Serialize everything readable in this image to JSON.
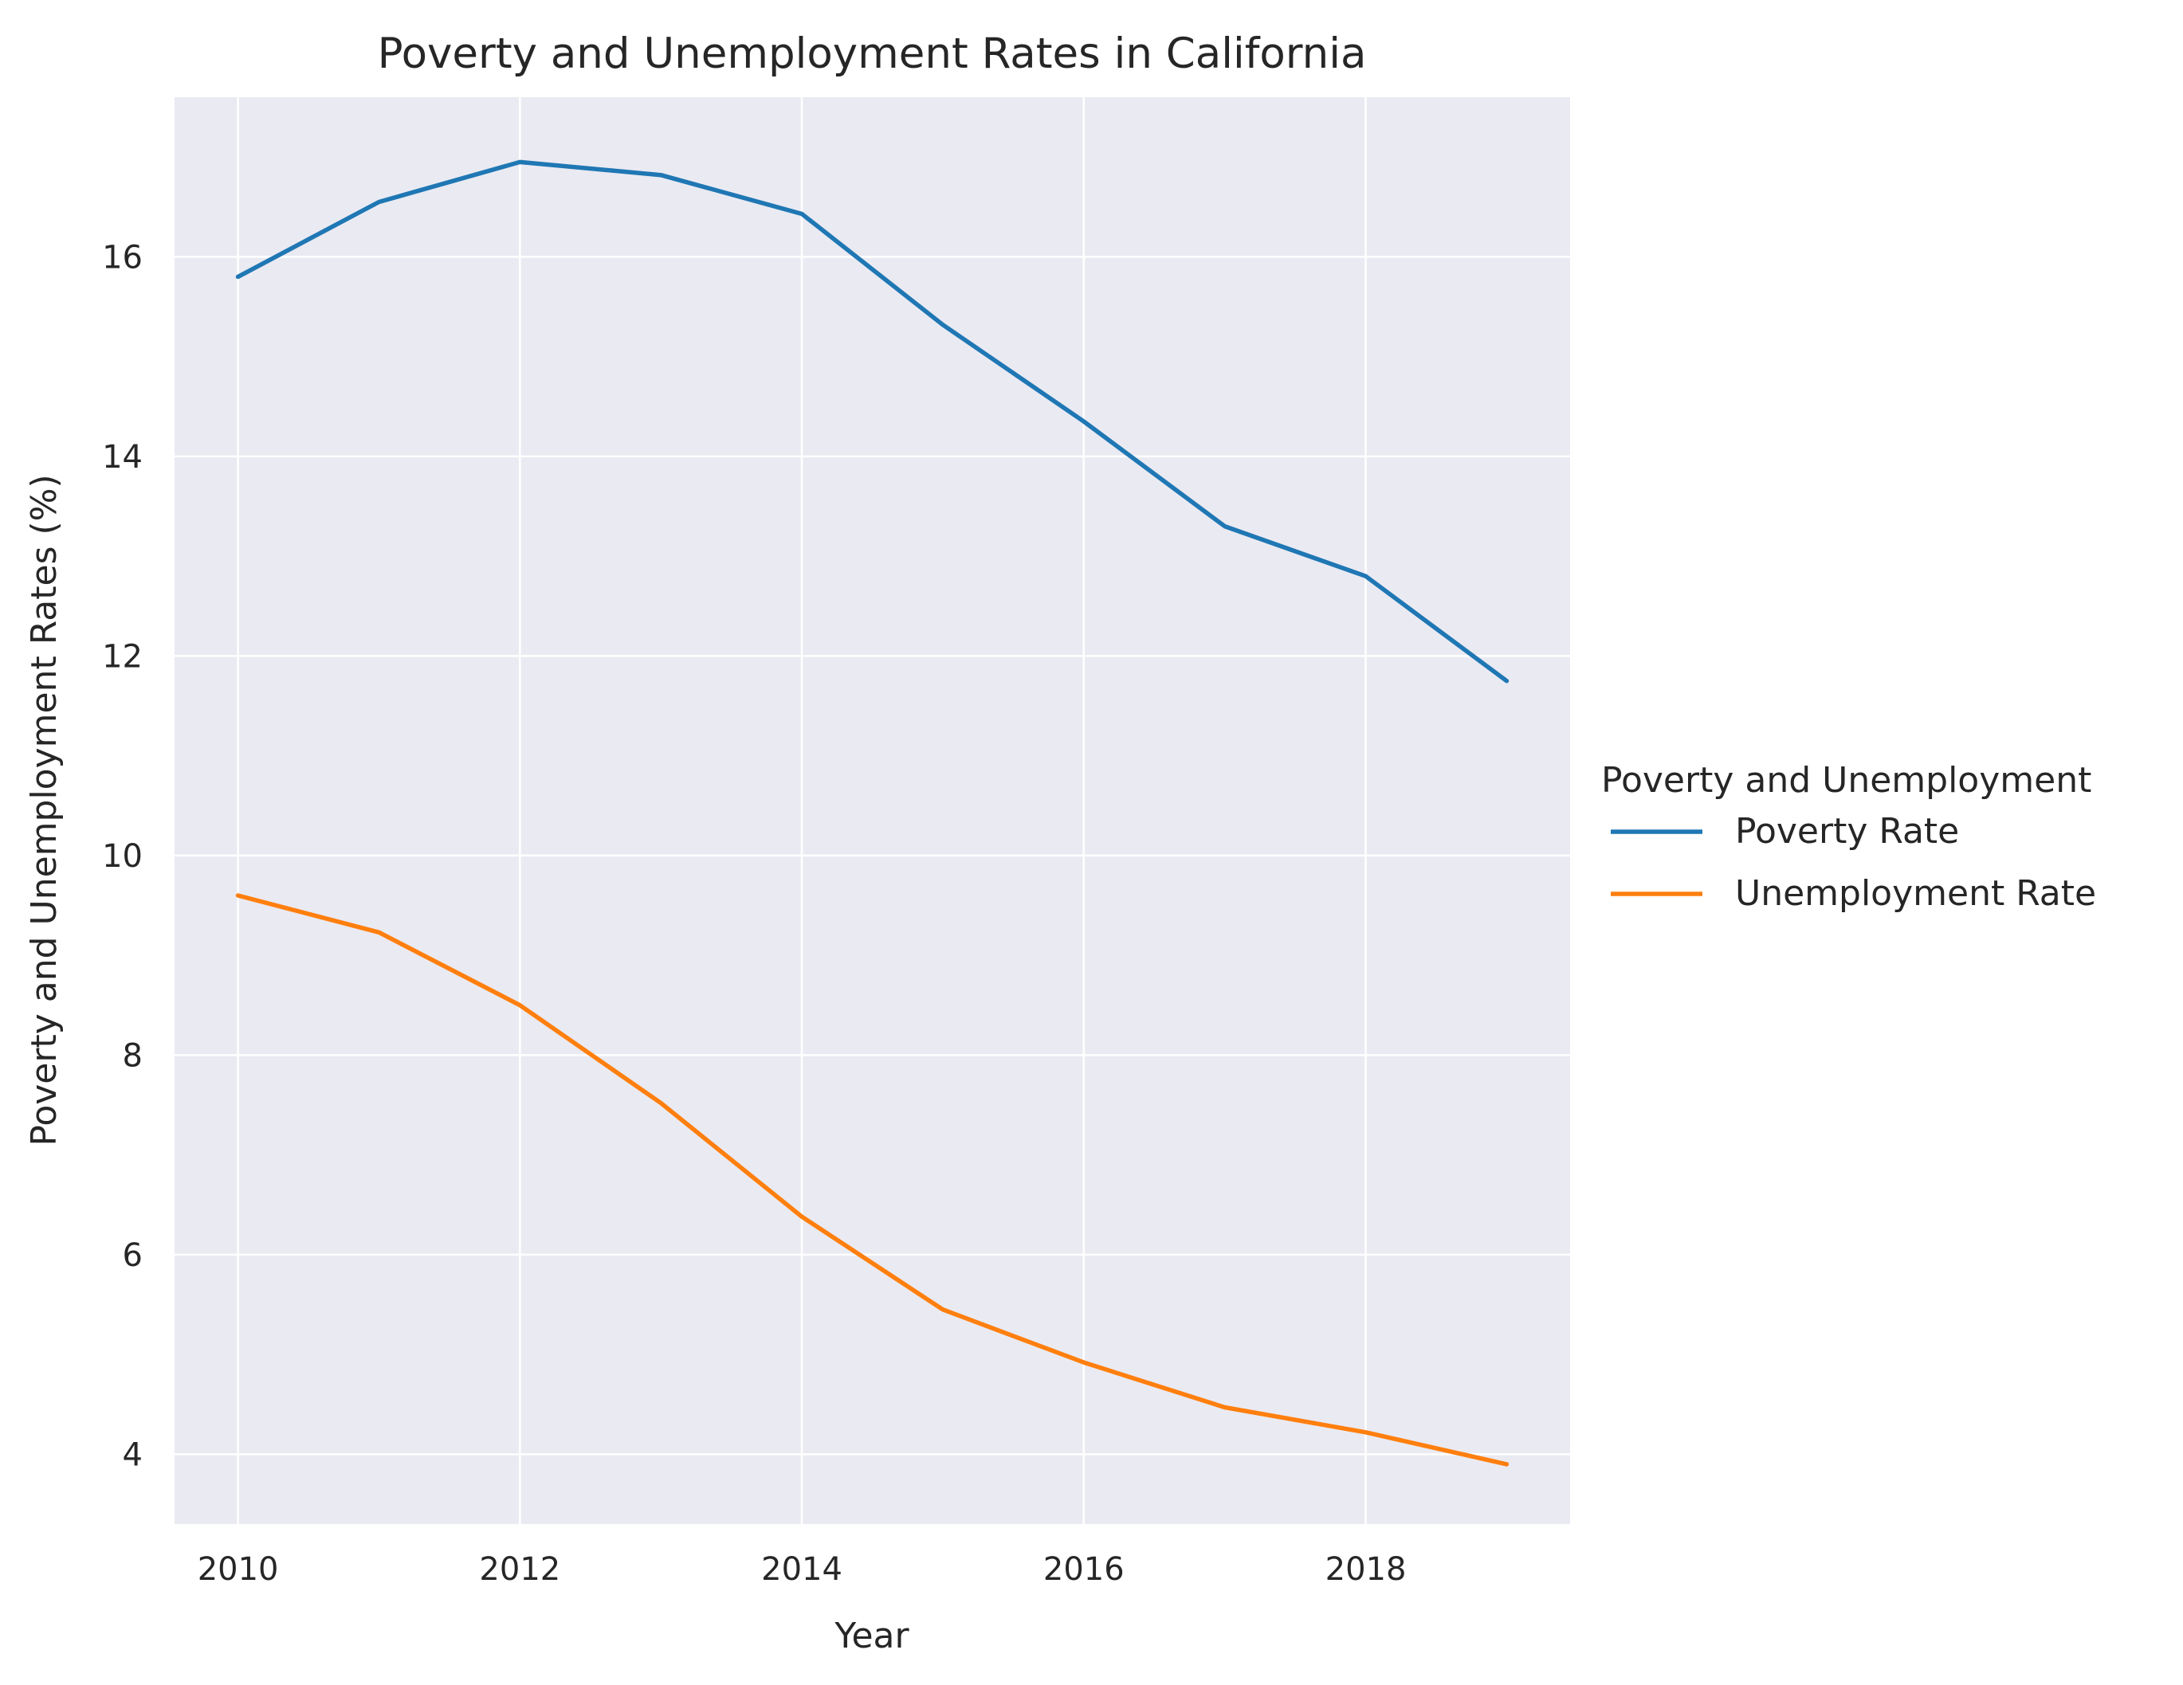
{
  "chart_data": {
    "type": "line",
    "title": "Poverty and Unemployment Rates in California",
    "xlabel": "Year",
    "ylabel": "Poverty and Unemployment Rates (%)",
    "x": [
      2010,
      2011,
      2012,
      2013,
      2014,
      2015,
      2016,
      2017,
      2018,
      2019
    ],
    "xticks": [
      2010,
      2012,
      2014,
      2016,
      2018
    ],
    "yticks": [
      4,
      6,
      8,
      10,
      12,
      14,
      16
    ],
    "xlim": [
      2009.55,
      2019.45
    ],
    "ylim": [
      3.3,
      17.6
    ],
    "grid": true,
    "legend": {
      "title": "Poverty and Unemployment",
      "placement": "center-right outside"
    },
    "series": [
      {
        "name": "Poverty Rate",
        "color": "#1f77b4",
        "values": [
          15.8,
          16.55,
          16.95,
          16.82,
          16.43,
          15.32,
          14.35,
          13.3,
          12.8,
          11.75
        ]
      },
      {
        "name": "Unemployment Rate",
        "color": "#ff7f0e",
        "values": [
          9.6,
          9.23,
          8.5,
          7.52,
          6.38,
          5.45,
          4.92,
          4.47,
          4.22,
          3.9
        ]
      }
    ],
    "colors": {
      "plot_background": "#eaeaf2",
      "grid": "#ffffff"
    }
  }
}
